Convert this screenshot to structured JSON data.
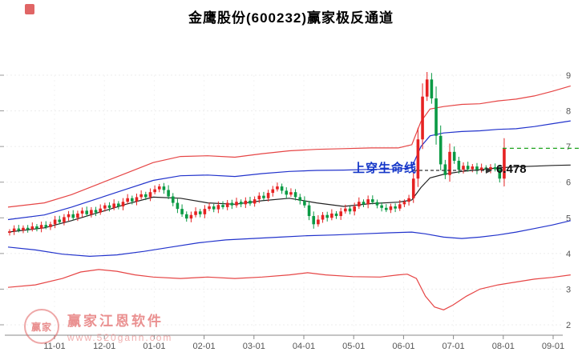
{
  "title": "金鹰股份(600232)赢家极反通道",
  "annotation": {
    "label": "上穿生命线",
    "price_label": "6.478"
  },
  "watermark": {
    "brand": "赢家江恩软件",
    "url": "www.520gann.com",
    "seal_text": "赢家"
  },
  "colors": {
    "up": "#e62222",
    "down": "#0a9a44",
    "channel_outer": "#e64545",
    "channel_inner": "#2233cc",
    "lifeline": "#222222",
    "ref_line": "#1ca21c",
    "axis": "#888888",
    "tick_label": "#555555",
    "annotation_blue": "#1436c8",
    "grid": "#ececec"
  },
  "chart_data": {
    "type": "candlestick",
    "title": "金鹰股份(600232)赢家极反通道",
    "ylim": [
      2,
      9.5
    ],
    "y_ticks": [
      9,
      8,
      7,
      6,
      5,
      4,
      3,
      2
    ],
    "x_tick_labels": [
      "11-01",
      "12-01",
      "01-01",
      "02-01",
      "03-01",
      "04-01",
      "05-01",
      "06-01",
      "07-01",
      "08-01",
      "09-01"
    ],
    "open_first": 4.58,
    "closes": [
      4.62,
      4.7,
      4.65,
      4.72,
      4.68,
      4.76,
      4.7,
      4.8,
      4.74,
      4.82,
      4.95,
      4.88,
      5.02,
      5.1,
      5.0,
      5.12,
      5.2,
      5.1,
      5.22,
      5.15,
      5.26,
      5.35,
      5.28,
      5.4,
      5.32,
      5.45,
      5.55,
      5.46,
      5.58,
      5.66,
      5.58,
      5.72,
      5.8,
      5.88,
      5.78,
      5.6,
      5.42,
      5.25,
      5.1,
      4.98,
      5.08,
      5.18,
      5.1,
      5.25,
      5.32,
      5.24,
      5.36,
      5.3,
      5.42,
      5.35,
      5.45,
      5.38,
      5.48,
      5.4,
      5.52,
      5.62,
      5.55,
      5.7,
      5.8,
      5.88,
      5.76,
      5.65,
      5.72,
      5.58,
      5.48,
      5.35,
      5.05,
      4.82,
      4.95,
      5.08,
      5.0,
      5.12,
      5.05,
      5.18,
      5.26,
      5.18,
      5.32,
      5.45,
      5.38,
      5.52,
      5.44,
      5.35,
      5.28,
      5.22,
      5.32,
      5.26,
      5.38,
      5.45,
      5.55,
      6.1,
      7.2,
      8.4,
      8.88,
      8.35,
      7.3,
      6.5,
      6.2,
      6.85,
      6.6,
      6.35,
      6.46,
      6.36,
      6.44,
      6.33,
      6.41,
      6.35,
      6.42,
      6.36,
      6.1,
      6.95
    ],
    "lines": [
      {
        "name": "upper-outer-red",
        "color": "#e64545",
        "points": [
          [
            0,
            5.3
          ],
          [
            8,
            5.42
          ],
          [
            14,
            5.65
          ],
          [
            20,
            5.95
          ],
          [
            26,
            6.25
          ],
          [
            32,
            6.55
          ],
          [
            38,
            6.72
          ],
          [
            44,
            6.74
          ],
          [
            50,
            6.7
          ],
          [
            56,
            6.8
          ],
          [
            62,
            6.88
          ],
          [
            68,
            6.92
          ],
          [
            74,
            6.94
          ],
          [
            80,
            6.96
          ],
          [
            86,
            6.96
          ],
          [
            89,
            7.05
          ],
          [
            91,
            7.7
          ],
          [
            93,
            8.05
          ],
          [
            96,
            8.12
          ],
          [
            100,
            8.18
          ],
          [
            104,
            8.2
          ],
          [
            108,
            8.28
          ],
          [
            112,
            8.33
          ],
          [
            116,
            8.42
          ],
          [
            120,
            8.55
          ],
          [
            124,
            8.7
          ]
        ]
      },
      {
        "name": "upper-inner-blue",
        "color": "#2233cc",
        "points": [
          [
            0,
            4.95
          ],
          [
            8,
            5.08
          ],
          [
            14,
            5.3
          ],
          [
            20,
            5.55
          ],
          [
            26,
            5.8
          ],
          [
            32,
            6.05
          ],
          [
            38,
            6.18
          ],
          [
            44,
            6.2
          ],
          [
            50,
            6.16
          ],
          [
            56,
            6.24
          ],
          [
            62,
            6.3
          ],
          [
            68,
            6.33
          ],
          [
            74,
            6.34
          ],
          [
            80,
            6.36
          ],
          [
            86,
            6.36
          ],
          [
            89,
            6.42
          ],
          [
            91,
            7.0
          ],
          [
            93,
            7.3
          ],
          [
            96,
            7.38
          ],
          [
            100,
            7.42
          ],
          [
            104,
            7.44
          ],
          [
            108,
            7.48
          ],
          [
            112,
            7.5
          ],
          [
            116,
            7.56
          ],
          [
            120,
            7.64
          ],
          [
            124,
            7.72
          ]
        ]
      },
      {
        "name": "lifeline-black",
        "color": "#222222",
        "points": [
          [
            0,
            4.6
          ],
          [
            8,
            4.72
          ],
          [
            14,
            4.92
          ],
          [
            20,
            5.15
          ],
          [
            26,
            5.38
          ],
          [
            32,
            5.58
          ],
          [
            38,
            5.55
          ],
          [
            44,
            5.42
          ],
          [
            50,
            5.38
          ],
          [
            56,
            5.48
          ],
          [
            62,
            5.55
          ],
          [
            68,
            5.42
          ],
          [
            74,
            5.32
          ],
          [
            80,
            5.4
          ],
          [
            86,
            5.44
          ],
          [
            89,
            5.5
          ],
          [
            91,
            5.85
          ],
          [
            93,
            6.12
          ],
          [
            96,
            6.22
          ],
          [
            100,
            6.3
          ],
          [
            104,
            6.35
          ],
          [
            108,
            6.4
          ],
          [
            112,
            6.43
          ],
          [
            116,
            6.45
          ],
          [
            120,
            6.47
          ],
          [
            124,
            6.48
          ]
        ]
      },
      {
        "name": "lower-inner-blue",
        "color": "#2233cc",
        "points": [
          [
            0,
            4.18
          ],
          [
            6,
            4.1
          ],
          [
            12,
            3.98
          ],
          [
            18,
            3.92
          ],
          [
            24,
            3.96
          ],
          [
            30,
            4.06
          ],
          [
            36,
            4.18
          ],
          [
            42,
            4.3
          ],
          [
            48,
            4.38
          ],
          [
            54,
            4.42
          ],
          [
            60,
            4.46
          ],
          [
            66,
            4.5
          ],
          [
            72,
            4.52
          ],
          [
            78,
            4.55
          ],
          [
            84,
            4.58
          ],
          [
            89,
            4.6
          ],
          [
            92,
            4.55
          ],
          [
            96,
            4.46
          ],
          [
            100,
            4.42
          ],
          [
            104,
            4.46
          ],
          [
            108,
            4.52
          ],
          [
            112,
            4.6
          ],
          [
            116,
            4.7
          ],
          [
            120,
            4.8
          ],
          [
            124,
            4.92
          ]
        ]
      },
      {
        "name": "lower-outer-red",
        "color": "#e64545",
        "points": [
          [
            0,
            3.05
          ],
          [
            6,
            3.12
          ],
          [
            12,
            3.3
          ],
          [
            16,
            3.48
          ],
          [
            20,
            3.55
          ],
          [
            24,
            3.5
          ],
          [
            28,
            3.4
          ],
          [
            32,
            3.34
          ],
          [
            38,
            3.3
          ],
          [
            44,
            3.34
          ],
          [
            50,
            3.3
          ],
          [
            56,
            3.34
          ],
          [
            62,
            3.4
          ],
          [
            66,
            3.46
          ],
          [
            70,
            3.4
          ],
          [
            76,
            3.35
          ],
          [
            82,
            3.34
          ],
          [
            86,
            3.4
          ],
          [
            88,
            3.42
          ],
          [
            90,
            3.3
          ],
          [
            92,
            2.8
          ],
          [
            94,
            2.5
          ],
          [
            96,
            2.42
          ],
          [
            98,
            2.55
          ],
          [
            101,
            2.8
          ],
          [
            104,
            3.0
          ],
          [
            108,
            3.12
          ],
          [
            112,
            3.2
          ],
          [
            116,
            3.28
          ],
          [
            120,
            3.33
          ],
          [
            124,
            3.4
          ]
        ]
      }
    ],
    "ref_line": {
      "value": 6.95,
      "start_index": 109
    },
    "current_price_label": "6.478"
  }
}
